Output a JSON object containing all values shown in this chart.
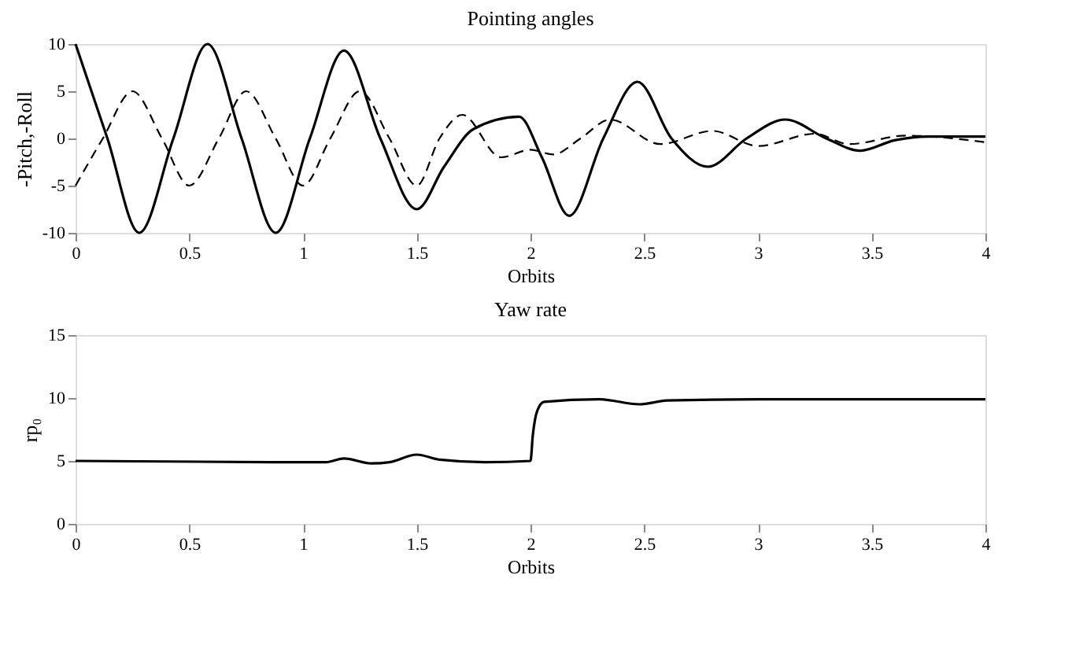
{
  "chart_data": [
    {
      "type": "line",
      "title": "Pointing angles",
      "xlabel": "Orbits",
      "ylabel": "-Pitch,-Roll",
      "xlim": [
        0,
        4
      ],
      "ylim": [
        -10,
        10
      ],
      "xticks": [
        0,
        0.5,
        1,
        1.5,
        2,
        2.5,
        3,
        3.5,
        4
      ],
      "yticks": [
        -10,
        -5,
        0,
        5,
        10
      ],
      "grid": false,
      "marker": "none",
      "series": [
        {
          "color": "#000000",
          "line_style": "solid",
          "x": [
            0,
            0.14,
            0.28,
            0.43,
            0.58,
            0.73,
            0.88,
            1.03,
            1.18,
            1.34,
            1.5,
            1.62,
            1.75,
            1.95,
            2.05,
            2.17,
            2.32,
            2.47,
            2.62,
            2.78,
            2.95,
            3.12,
            3.3,
            3.45,
            3.6,
            3.75,
            4
          ],
          "values": [
            10,
            0,
            -10,
            0,
            10,
            0,
            -10,
            0,
            9.3,
            0,
            -7.5,
            -3,
            1,
            2.3,
            -2,
            -8.2,
            0,
            6,
            0,
            -3,
            0,
            2,
            0,
            -1.3,
            -0.2,
            0.2,
            0.2
          ]
        },
        {
          "color": "#000000",
          "line_style": "dashed",
          "x": [
            0,
            0.12,
            0.25,
            0.38,
            0.5,
            0.63,
            0.75,
            0.88,
            1.0,
            1.12,
            1.25,
            1.38,
            1.5,
            1.6,
            1.7,
            1.87,
            2.0,
            2.1,
            2.22,
            2.35,
            2.57,
            2.8,
            3.0,
            3.25,
            3.4,
            3.65,
            4
          ],
          "values": [
            -5,
            0,
            5,
            0,
            -5,
            0,
            5,
            0,
            -5,
            0,
            5,
            0,
            -5,
            0,
            2.5,
            -2,
            -1.2,
            -1.7,
            0,
            2,
            -0.6,
            0.8,
            -0.8,
            0.5,
            -0.6,
            0.3,
            -0.4
          ]
        }
      ]
    },
    {
      "type": "line",
      "title": "Yaw rate",
      "xlabel": "Orbits",
      "ylabel": "rp₀",
      "xlim": [
        0,
        4
      ],
      "ylim": [
        0,
        15
      ],
      "xticks": [
        0,
        0.5,
        1,
        1.5,
        2,
        2.5,
        3,
        3.5,
        4
      ],
      "yticks": [
        0,
        5,
        10,
        15
      ],
      "grid": false,
      "marker": "none",
      "series": [
        {
          "color": "#000000",
          "line_style": "solid",
          "x": [
            0,
            1,
            1.1,
            1.18,
            1.3,
            1.38,
            1.5,
            1.6,
            1.8,
            2.0,
            2.01,
            2.03,
            2.06,
            2.3,
            2.48,
            2.6,
            3,
            4
          ],
          "values": [
            5,
            4.9,
            4.9,
            5.2,
            4.8,
            4.9,
            5.5,
            5.1,
            4.9,
            5.0,
            7,
            9,
            9.7,
            9.9,
            9.5,
            9.8,
            9.9,
            9.9
          ]
        }
      ]
    }
  ]
}
